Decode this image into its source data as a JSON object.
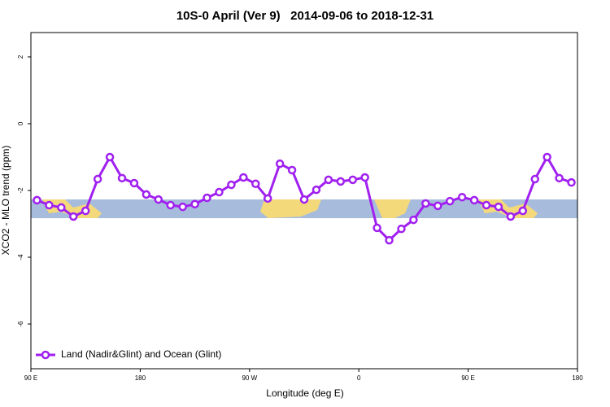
{
  "chart_data": {
    "type": "line",
    "title": "10S-0 April (Ver 9)   2014-09-06 to 2018-12-31",
    "xlabel": "Longitude (deg E)",
    "ylabel": "XCO2 - MLO trend (ppm)",
    "x": [
      95,
      105,
      115,
      125,
      135,
      145,
      155,
      165,
      175,
      185,
      195,
      205,
      215,
      225,
      235,
      245,
      255,
      265,
      275,
      285,
      295,
      305,
      315,
      325,
      335,
      345,
      355,
      365,
      375,
      385,
      395,
      405,
      415,
      425,
      435,
      445,
      455,
      465,
      475,
      485,
      495,
      505,
      515,
      525,
      535
    ],
    "series": [
      {
        "name": "Land (Nadir&Glint) and Ocean (Glint)",
        "color": "#a020f0",
        "values": [
          -2.29,
          -2.44,
          -2.51,
          -2.78,
          -2.61,
          -1.66,
          -1.0,
          -1.63,
          -1.78,
          -2.12,
          -2.27,
          -2.44,
          -2.49,
          -2.41,
          -2.22,
          -2.05,
          -1.83,
          -1.61,
          -1.8,
          -2.24,
          -1.2,
          -1.39,
          -2.27,
          -1.98,
          -1.68,
          -1.73,
          -1.68,
          -1.61,
          -3.12,
          -3.49,
          -3.15,
          -2.88,
          -2.39,
          -2.46,
          -2.32,
          -2.2,
          -2.29,
          -2.44,
          -2.49,
          -2.78,
          -2.61,
          -1.66,
          -1.0,
          -1.63,
          -1.76
        ]
      }
    ],
    "xlim": [
      90,
      540
    ],
    "xticks": [
      {
        "value": 90,
        "label": "90 E"
      },
      180,
      {
        "value": 270,
        "label": "90 W"
      },
      {
        "value": 360,
        "label": "0"
      },
      {
        "value": 450,
        "label": "90 E"
      },
      {
        "value": 540,
        "label": "180"
      }
    ],
    "ylim": [
      -7.34,
      2.73
    ],
    "yticks": [
      2,
      0,
      -2,
      -4,
      -6
    ],
    "legend": "bottom-left"
  }
}
